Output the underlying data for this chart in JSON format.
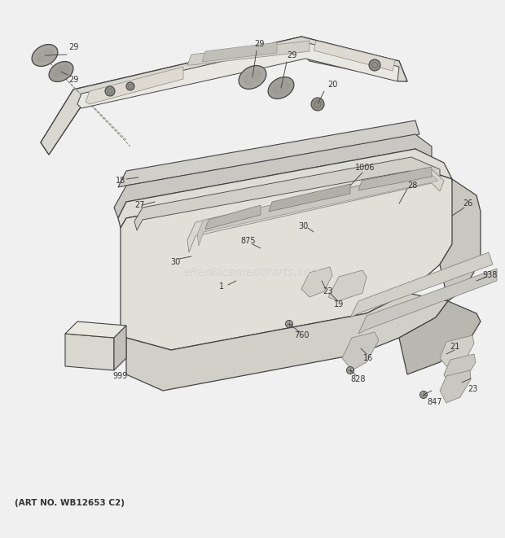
{
  "bg_color": "#f0f0f0",
  "watermark": "eReplacementParts.com",
  "art_no": "(ART NO. WB12653 C2)",
  "text_color": "#333333",
  "line_color": "#444444",
  "panel_face": "#e8e8e0",
  "panel_dark": "#c8c8c0",
  "panel_mid": "#d8d8d0",
  "knob_face": "#b0b0a8",
  "box_face": "#ddddd5"
}
